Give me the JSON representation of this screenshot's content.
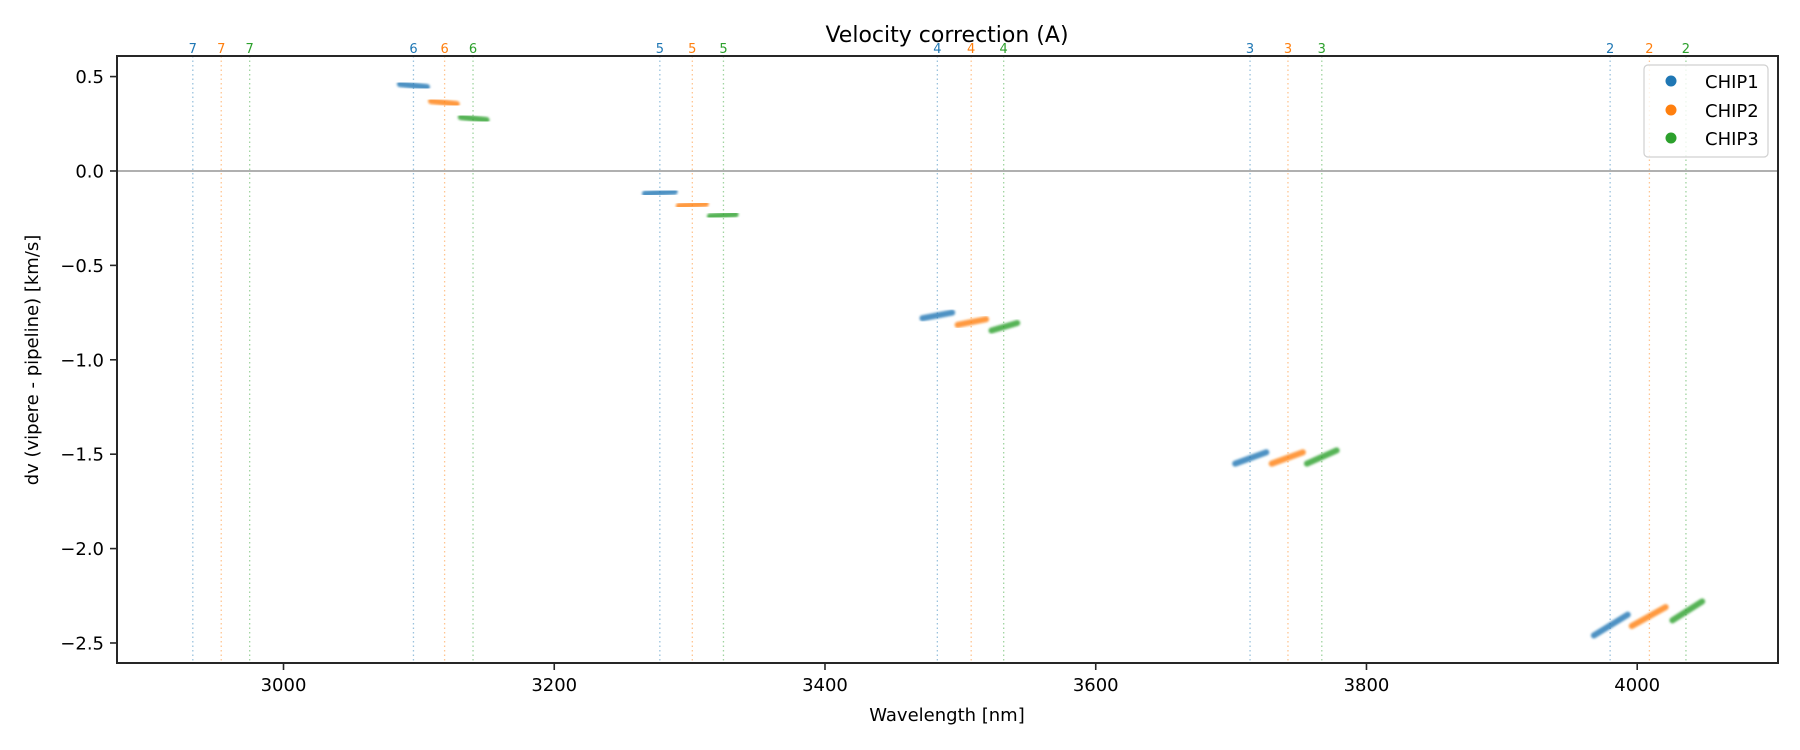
{
  "chart_data": {
    "type": "scatter",
    "title": "Velocity correction (A)",
    "xlabel": "Wavelength [nm]",
    "ylabel": "dv (vipere - pipeline) [km/s]",
    "xlim": [
      2877,
      4104
    ],
    "ylim": [
      -2.606,
      0.609
    ],
    "xticks": [
      3000,
      3200,
      3400,
      3600,
      3800,
      4000
    ],
    "xtick_labels": [
      "3000",
      "3200",
      "3400",
      "3600",
      "3800",
      "4000"
    ],
    "yticks": [
      0.5,
      0.0,
      -0.5,
      -1.0,
      -1.5,
      -2.0,
      -2.5
    ],
    "ytick_labels": [
      "0.5",
      "0.0",
      "−0.5",
      "−1.0",
      "−1.5",
      "−2.0",
      "−2.5"
    ],
    "grid": false,
    "hline": {
      "y": 0.0,
      "color": "#808080"
    },
    "legend": {
      "placement": "top-right",
      "entries": [
        {
          "label": "CHIP1",
          "color": "#1f77b4"
        },
        {
          "label": "CHIP2",
          "color": "#ff7f0e"
        },
        {
          "label": "CHIP3",
          "color": "#2ca02c"
        }
      ]
    },
    "order_lines": [
      {
        "order": "7",
        "chip": 0,
        "x": 2933
      },
      {
        "order": "7",
        "chip": 1,
        "x": 2954
      },
      {
        "order": "7",
        "chip": 2,
        "x": 2975
      },
      {
        "order": "6",
        "chip": 0,
        "x": 3096
      },
      {
        "order": "6",
        "chip": 1,
        "x": 3119
      },
      {
        "order": "6",
        "chip": 2,
        "x": 3140
      },
      {
        "order": "5",
        "chip": 0,
        "x": 3278
      },
      {
        "order": "5",
        "chip": 1,
        "x": 3302
      },
      {
        "order": "5",
        "chip": 2,
        "x": 3325
      },
      {
        "order": "4",
        "chip": 0,
        "x": 3483
      },
      {
        "order": "4",
        "chip": 1,
        "x": 3508
      },
      {
        "order": "4",
        "chip": 2,
        "x": 3532
      },
      {
        "order": "3",
        "chip": 0,
        "x": 3714
      },
      {
        "order": "3",
        "chip": 1,
        "x": 3742
      },
      {
        "order": "3",
        "chip": 2,
        "x": 3767
      },
      {
        "order": "2",
        "chip": 0,
        "x": 3980
      },
      {
        "order": "2",
        "chip": 1,
        "x": 4009
      },
      {
        "order": "2",
        "chip": 2,
        "x": 4036
      }
    ],
    "series": [
      {
        "name": "CHIP1",
        "color": "#1f77b4",
        "segments": [
          {
            "order": "6",
            "x": [
              3086,
              3106
            ],
            "y": [
              0.46,
              0.445
            ]
          },
          {
            "order": "5",
            "x": [
              3267,
              3289
            ],
            "y": [
              -0.12,
              -0.11
            ]
          },
          {
            "order": "4",
            "x": [
              3472,
              3494
            ],
            "y": [
              -0.78,
              -0.75
            ]
          },
          {
            "order": "3",
            "x": [
              3703,
              3726
            ],
            "y": [
              -1.55,
              -1.49
            ]
          },
          {
            "order": "2",
            "x": [
              3968,
              3993
            ],
            "y": [
              -2.46,
              -2.35
            ]
          }
        ]
      },
      {
        "name": "CHIP2",
        "color": "#ff7f0e",
        "segments": [
          {
            "order": "6",
            "x": [
              3109,
              3128
            ],
            "y": [
              0.37,
              0.355
            ]
          },
          {
            "order": "5",
            "x": [
              3292,
              3312
            ],
            "y": [
              -0.185,
              -0.175
            ]
          },
          {
            "order": "4",
            "x": [
              3498,
              3519
            ],
            "y": [
              -0.815,
              -0.785
            ]
          },
          {
            "order": "3",
            "x": [
              3730,
              3753
            ],
            "y": [
              -1.55,
              -1.49
            ]
          },
          {
            "order": "2",
            "x": [
              3996,
              4021
            ],
            "y": [
              -2.41,
              -2.31
            ]
          }
        ]
      },
      {
        "name": "CHIP3",
        "color": "#2ca02c",
        "segments": [
          {
            "order": "6",
            "x": [
              3131,
              3150
            ],
            "y": [
              0.285,
              0.27
            ]
          },
          {
            "order": "5",
            "x": [
              3315,
              3334
            ],
            "y": [
              -0.24,
              -0.23
            ]
          },
          {
            "order": "4",
            "x": [
              3523,
              3542
            ],
            "y": [
              -0.845,
              -0.805
            ]
          },
          {
            "order": "3",
            "x": [
              3756,
              3778
            ],
            "y": [
              -1.55,
              -1.48
            ]
          },
          {
            "order": "2",
            "x": [
              4026,
              4048
            ],
            "y": [
              -2.38,
              -2.28
            ]
          }
        ]
      }
    ]
  }
}
